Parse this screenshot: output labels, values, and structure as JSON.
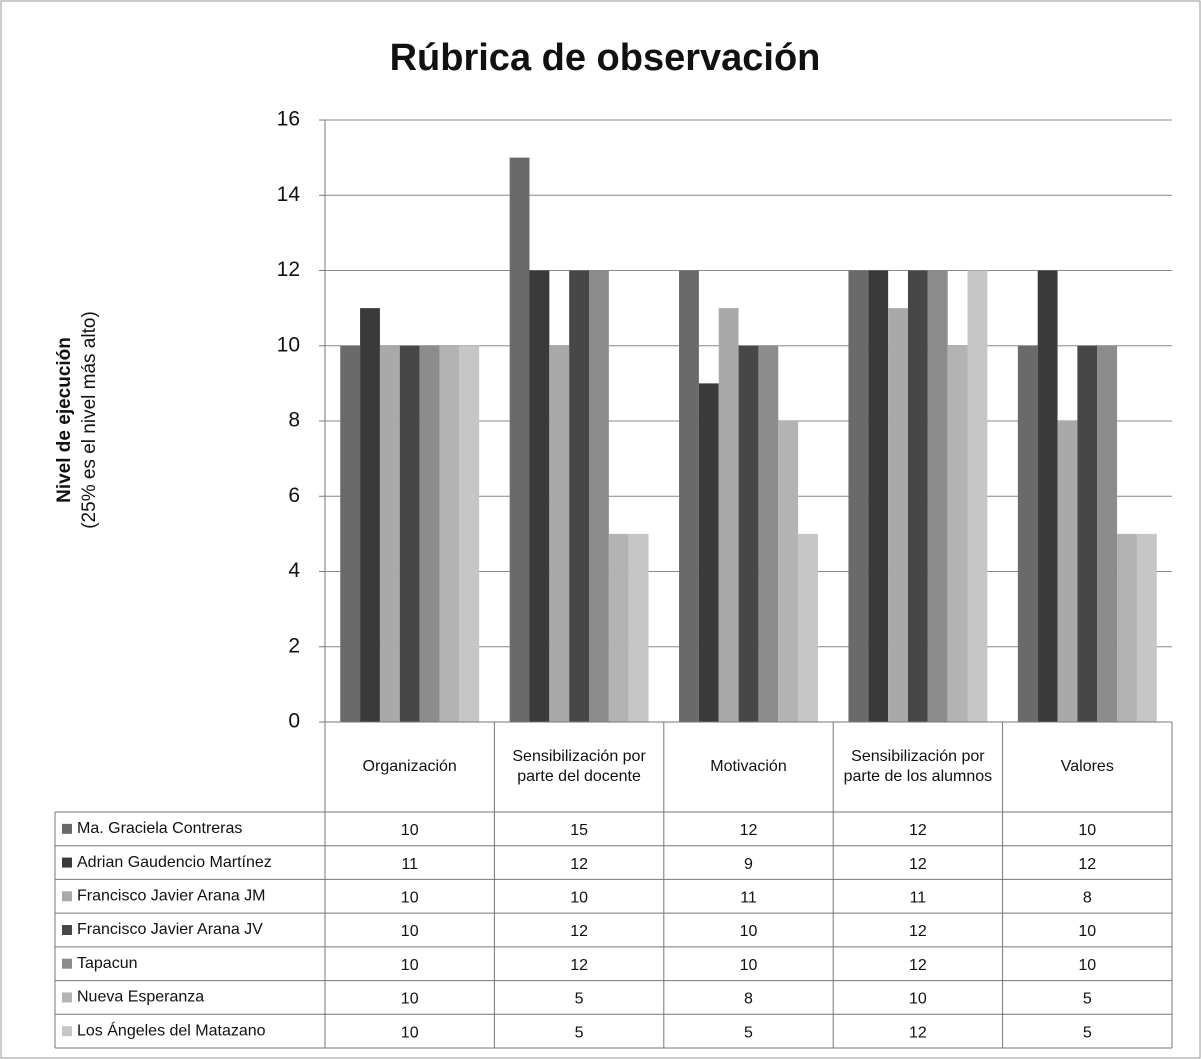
{
  "chart_data": {
    "type": "bar",
    "title": "Rúbrica de observación",
    "y_label": "Nivel de ejecución",
    "y_sublabel": "(25% es el nivel más alto)",
    "categories": [
      "Organización",
      "Sensibilización por parte del docente",
      "Motivación",
      "Sensibilización por parte de los alumnos",
      "Valores"
    ],
    "series": [
      {
        "name": "Ma. Graciela Contreras",
        "color": "#6a6a6a",
        "values": [
          10,
          15,
          12,
          12,
          10
        ]
      },
      {
        "name": "Adrian Gaudencio Martínez",
        "color": "#3a3a3a",
        "values": [
          11,
          12,
          9,
          12,
          12
        ]
      },
      {
        "name": "Francisco Javier Arana JM",
        "color": "#a9a9a9",
        "values": [
          10,
          10,
          11,
          11,
          8
        ]
      },
      {
        "name": "Francisco Javier Arana JV",
        "color": "#474747",
        "values": [
          10,
          12,
          10,
          12,
          10
        ]
      },
      {
        "name": "Tapacun",
        "color": "#8c8c8c",
        "values": [
          10,
          12,
          10,
          12,
          10
        ]
      },
      {
        "name": "Nueva Esperanza",
        "color": "#b3b3b3",
        "values": [
          10,
          5,
          8,
          10,
          5
        ]
      },
      {
        "name": "Los Ángeles del Matazano",
        "color": "#c6c6c6",
        "values": [
          10,
          5,
          5,
          12,
          5
        ]
      }
    ],
    "ylim": [
      0,
      16
    ],
    "yticks": [
      0,
      2,
      4,
      6,
      8,
      10,
      12,
      14,
      16
    ],
    "grid": true
  }
}
